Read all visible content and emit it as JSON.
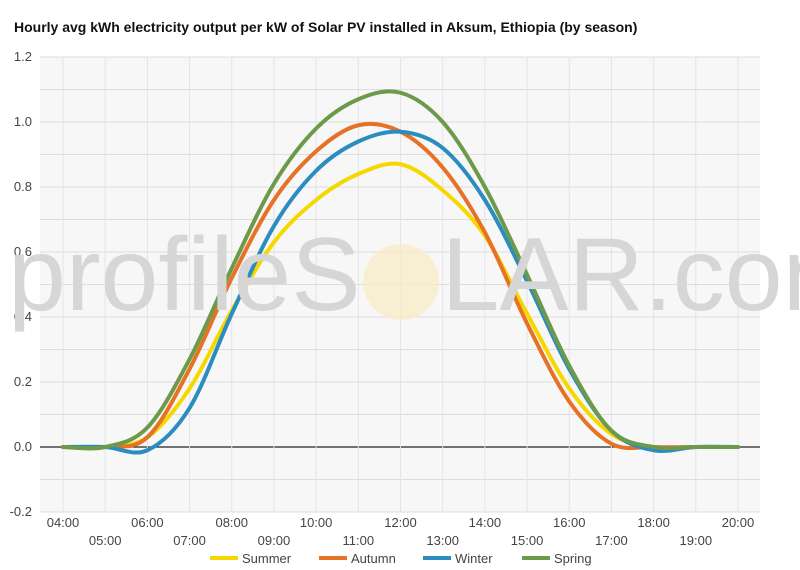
{
  "chart_data": {
    "type": "line",
    "title": "Hourly avg kWh electricity output per kW of Solar PV installed in Aksum, Ethiopia (by season)",
    "xlabel": "",
    "ylabel": "",
    "ylim": [
      -0.2,
      1.2
    ],
    "yticks": [
      "-0.2",
      "0.0",
      "0.2",
      "0.4",
      "0.6",
      "0.8",
      "1.0",
      "1.2"
    ],
    "categories": [
      "04:00",
      "05:00",
      "06:00",
      "07:00",
      "08:00",
      "09:00",
      "10:00",
      "11:00",
      "12:00",
      "13:00",
      "14:00",
      "15:00",
      "16:00",
      "17:00",
      "18:00",
      "19:00",
      "20:00"
    ],
    "grid": true,
    "legend_position": "bottom",
    "watermark": "profileSOLAR.com",
    "series": [
      {
        "name": "Summer",
        "color": "#f5d800",
        "values": [
          0.0,
          0.0,
          0.03,
          0.18,
          0.42,
          0.63,
          0.76,
          0.84,
          0.87,
          0.79,
          0.65,
          0.41,
          0.18,
          0.04,
          0.0,
          0.0,
          0.0
        ]
      },
      {
        "name": "Autumn",
        "color": "#e67225",
        "values": [
          0.0,
          0.0,
          0.03,
          0.24,
          0.52,
          0.76,
          0.91,
          0.99,
          0.97,
          0.86,
          0.66,
          0.38,
          0.14,
          0.01,
          0.0,
          0.0,
          0.0
        ]
      },
      {
        "name": "Winter",
        "color": "#2b8cbf",
        "values": [
          0.0,
          0.0,
          -0.01,
          0.12,
          0.41,
          0.68,
          0.85,
          0.94,
          0.97,
          0.92,
          0.76,
          0.51,
          0.24,
          0.05,
          -0.01,
          0.0,
          0.0
        ]
      },
      {
        "name": "Spring",
        "color": "#6c9a4a",
        "values": [
          0.0,
          0.0,
          0.06,
          0.27,
          0.55,
          0.81,
          0.98,
          1.07,
          1.09,
          1.0,
          0.8,
          0.53,
          0.25,
          0.05,
          0.0,
          0.0,
          0.0
        ]
      }
    ]
  }
}
